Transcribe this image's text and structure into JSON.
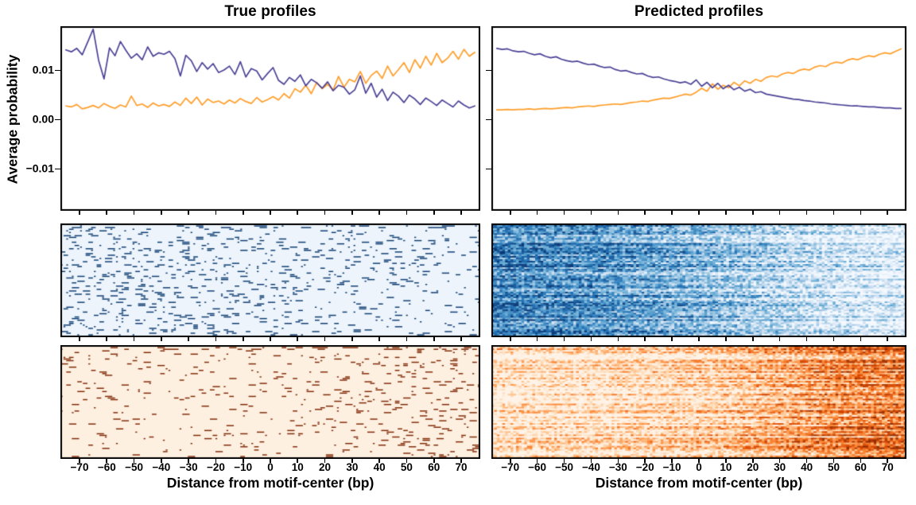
{
  "figure": {
    "titles": {
      "left": "True profiles",
      "right": "Predicted profiles"
    },
    "ylabel": "Average probability",
    "xlabel": "Distance from motif-center (bp)",
    "xticks": [
      -70,
      -60,
      -50,
      -40,
      -30,
      -20,
      -10,
      0,
      10,
      20,
      30,
      40,
      50,
      60,
      70
    ],
    "xtick_labels": [
      "−70",
      "−60",
      "−50",
      "−40",
      "−30",
      "−20",
      "−10",
      "0",
      "10",
      "20",
      "30",
      "40",
      "50",
      "60",
      "70"
    ],
    "yticks": [
      0.01,
      0.0,
      -0.01
    ],
    "ytick_labels": [
      "0.01",
      "0.00",
      "−0.01"
    ],
    "colors": {
      "plus_strand": "#ff9e2a",
      "minus_strand": "#4c4396",
      "frame": "#000000"
    }
  },
  "chart_data": [
    {
      "id": "line-true",
      "type": "line",
      "title": "True profiles",
      "xlabel": "Distance from motif-center (bp)",
      "ylabel": "Average probability",
      "xlim": [
        -77,
        77
      ],
      "ylim": [
        -0.0185,
        0.019
      ],
      "x_start": -75,
      "x_step": 2,
      "y_scale": 0.001,
      "grid": false,
      "legend": "none",
      "series": [
        {
          "name": "plus-strand-profile",
          "color": "#ff9e2a",
          "values": [
            2.8,
            2.6,
            3.1,
            2.2,
            2.5,
            2.9,
            2.4,
            3.3,
            2.7,
            2.3,
            3.0,
            2.6,
            4.8,
            2.9,
            3.2,
            2.5,
            3.4,
            2.8,
            3.1,
            2.7,
            3.6,
            2.9,
            4.4,
            3.3,
            4.6,
            3.0,
            4.2,
            3.5,
            3.8,
            3.2,
            4.0,
            3.4,
            4.3,
            3.7,
            3.3,
            4.5,
            3.6,
            4.1,
            4.7,
            4.0,
            5.3,
            4.4,
            6.3,
            5.6,
            7.0,
            5.3,
            7.6,
            6.3,
            7.2,
            6.0,
            8.8,
            6.6,
            8.2,
            7.7,
            9.8,
            7.4,
            9.0,
            9.9,
            8.4,
            10.9,
            8.9,
            10.2,
            11.6,
            9.6,
            12.2,
            10.5,
            12.9,
            11.1,
            13.5,
            11.6,
            12.5,
            13.9,
            12.3,
            14.3,
            12.9,
            13.7
          ]
        },
        {
          "name": "minus-strand-profile",
          "color": "#4c4396",
          "values": [
            14.2,
            13.8,
            14.5,
            13.2,
            15.8,
            18.4,
            12.1,
            8.3,
            14.6,
            13.0,
            15.9,
            14.1,
            12.5,
            13.4,
            12.2,
            14.8,
            12.9,
            13.6,
            13.3,
            13.9,
            12.4,
            8.9,
            13.1,
            12.0,
            9.8,
            11.6,
            10.3,
            11.4,
            9.6,
            10.1,
            10.9,
            9.2,
            11.8,
            8.7,
            10.4,
            9.9,
            8.1,
            9.4,
            10.6,
            8.0,
            7.2,
            8.6,
            7.8,
            9.1,
            6.9,
            8.2,
            7.5,
            6.4,
            7.7,
            5.9,
            7.0,
            6.6,
            5.2,
            6.1,
            8.9,
            5.4,
            7.4,
            4.6,
            6.2,
            3.9,
            5.6,
            4.8,
            3.5,
            5.0,
            4.2,
            3.1,
            4.4,
            3.7,
            2.9,
            4.0,
            3.3,
            2.6,
            3.8,
            3.0,
            2.4,
            2.8
          ]
        }
      ]
    },
    {
      "id": "line-pred",
      "type": "line",
      "title": "Predicted profiles",
      "xlabel": "Distance from motif-center (bp)",
      "ylabel": "",
      "xlim": [
        -77,
        77
      ],
      "ylim": [
        -0.0185,
        0.019
      ],
      "x_start": -75,
      "x_step": 2,
      "y_scale": 0.001,
      "grid": false,
      "legend": "none",
      "series": [
        {
          "name": "plus-strand-profile",
          "color": "#ff9e2a",
          "values": [
            2.0,
            2.0,
            2.1,
            2.0,
            2.1,
            2.1,
            2.2,
            2.1,
            2.2,
            2.3,
            2.2,
            2.3,
            2.4,
            2.5,
            2.4,
            2.6,
            2.7,
            2.8,
            2.7,
            2.9,
            3.0,
            3.1,
            3.2,
            3.1,
            3.3,
            3.5,
            3.6,
            3.8,
            3.7,
            4.0,
            4.2,
            4.4,
            4.3,
            4.6,
            4.9,
            5.2,
            5.0,
            5.6,
            6.4,
            5.8,
            7.3,
            6.2,
            7.0,
            6.5,
            7.6,
            6.9,
            7.9,
            7.4,
            8.2,
            7.8,
            8.6,
            8.9,
            8.7,
            9.3,
            9.6,
            9.4,
            10.0,
            10.3,
            10.1,
            10.7,
            11.0,
            10.8,
            11.4,
            11.7,
            11.5,
            12.1,
            12.4,
            12.2,
            12.7,
            13.0,
            12.8,
            13.3,
            13.6,
            13.4,
            13.9,
            14.4
          ]
        },
        {
          "name": "minus-strand-profile",
          "color": "#4c4396",
          "values": [
            14.5,
            14.3,
            14.4,
            14.0,
            13.8,
            13.9,
            13.5,
            13.2,
            13.4,
            12.9,
            12.6,
            12.8,
            12.3,
            12.0,
            11.8,
            11.9,
            11.5,
            11.2,
            11.3,
            10.9,
            10.6,
            10.7,
            10.2,
            9.9,
            10.0,
            9.6,
            9.3,
            9.4,
            8.9,
            8.6,
            8.7,
            8.3,
            8.0,
            7.8,
            7.5,
            7.7,
            7.2,
            8.1,
            6.8,
            7.6,
            6.5,
            7.4,
            6.3,
            7.0,
            6.1,
            6.6,
            5.8,
            6.2,
            5.5,
            5.7,
            5.2,
            5.0,
            4.8,
            4.6,
            4.4,
            4.2,
            4.1,
            3.9,
            3.8,
            3.6,
            3.5,
            3.4,
            3.2,
            3.1,
            3.0,
            2.9,
            2.8,
            2.8,
            2.7,
            2.6,
            2.6,
            2.5,
            2.4,
            2.4,
            2.3,
            2.3
          ]
        }
      ]
    },
    {
      "id": "hm-true-blue",
      "type": "heatmap",
      "style": "sparse-reads",
      "colormap": "Blues",
      "rows": 70,
      "cols": 152,
      "xlim": [
        -77,
        77
      ],
      "background": "#edf4fb",
      "mark_color": "#0b3a6f",
      "top_rows_boost": 1.7,
      "density_x": [
        -70,
        -50,
        -30,
        -10,
        10,
        30,
        50,
        70
      ],
      "density": [
        0.11,
        0.1,
        0.09,
        0.085,
        0.075,
        0.065,
        0.055,
        0.045
      ]
    },
    {
      "id": "hm-pred-blue",
      "type": "heatmap",
      "style": "continuous",
      "colormap": "Blues",
      "rows": 70,
      "cols": 152,
      "xlim": [
        -77,
        77
      ],
      "noise": 0.3,
      "row_jitter": 0.22,
      "row_shift_bp": 26,
      "top_rows_extra": 0.1,
      "intensity_x": [
        -70,
        -50,
        -30,
        -10,
        10,
        30,
        50,
        70
      ],
      "intensity": [
        0.66,
        0.62,
        0.56,
        0.48,
        0.38,
        0.26,
        0.16,
        0.09
      ]
    },
    {
      "id": "hm-true-orange",
      "type": "heatmap",
      "style": "sparse-reads",
      "colormap": "Oranges",
      "rows": 70,
      "cols": 152,
      "xlim": [
        -77,
        77
      ],
      "background": "#fdf0e1",
      "mark_color": "#7f2704",
      "top_rows_boost": 3.0,
      "density_x": [
        -70,
        -50,
        -30,
        -10,
        10,
        30,
        50,
        70
      ],
      "density": [
        0.04,
        0.035,
        0.032,
        0.035,
        0.04,
        0.05,
        0.06,
        0.075
      ]
    },
    {
      "id": "hm-pred-orange",
      "type": "heatmap",
      "style": "continuous",
      "colormap": "Oranges",
      "rows": 70,
      "cols": 152,
      "xlim": [
        -77,
        77
      ],
      "noise": 0.3,
      "row_jitter": 0.24,
      "row_shift_bp": 26,
      "top_rows_extra": 0.22,
      "intensity_x": [
        -70,
        -50,
        -30,
        -10,
        10,
        30,
        50,
        70
      ],
      "intensity": [
        0.07,
        0.08,
        0.1,
        0.14,
        0.2,
        0.33,
        0.46,
        0.55
      ]
    }
  ]
}
